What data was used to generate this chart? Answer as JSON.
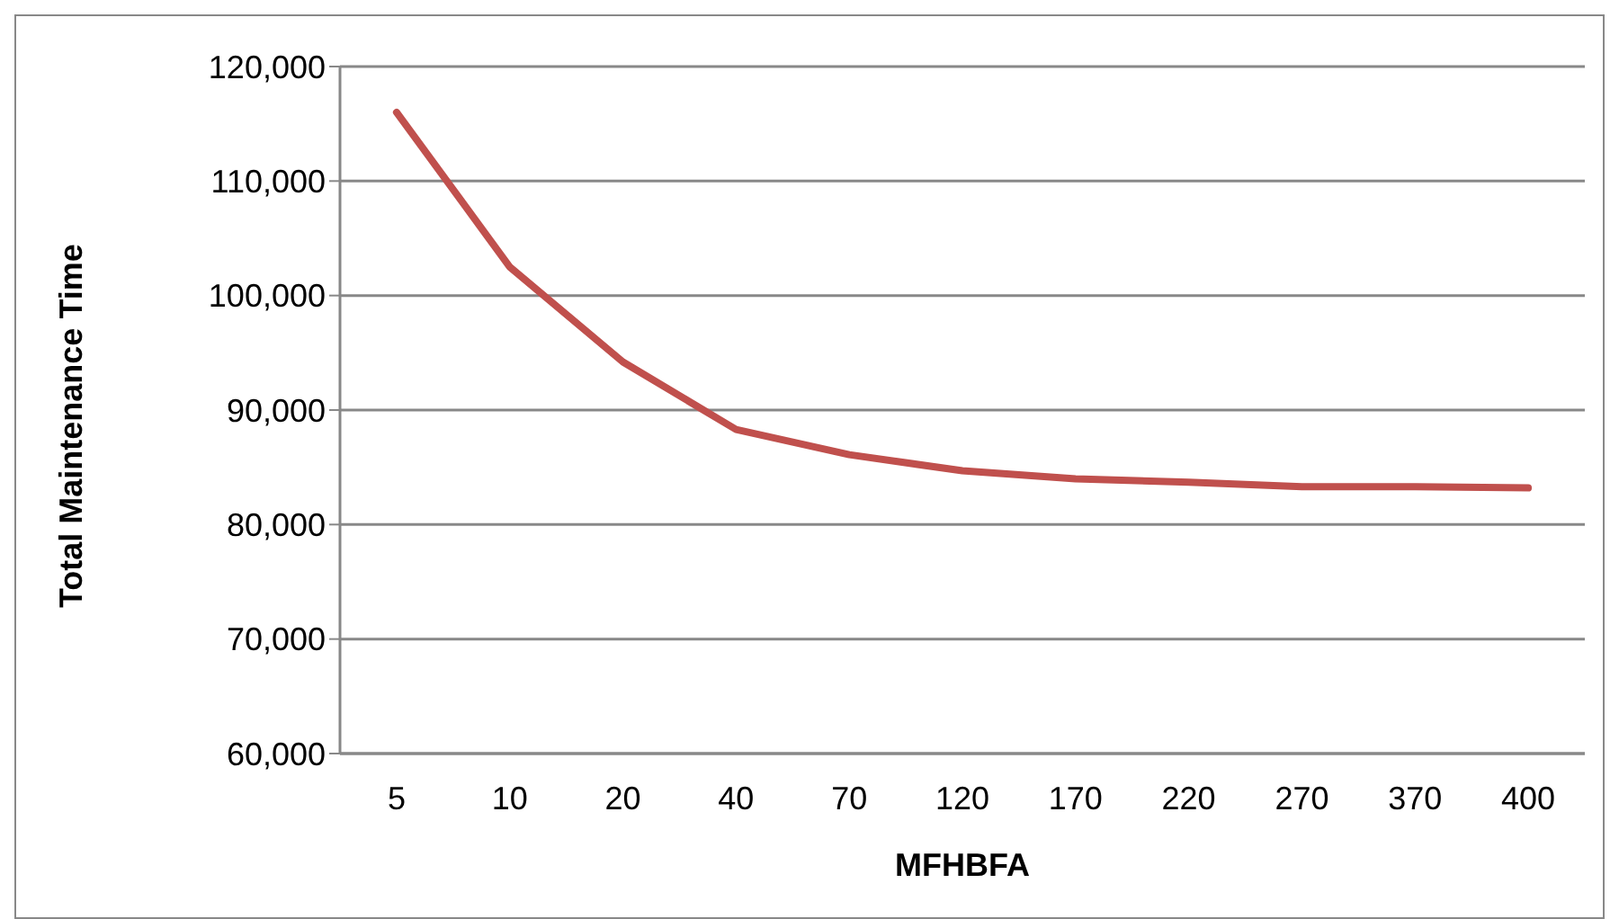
{
  "chart_data": {
    "type": "line",
    "xlabel": "MFHBFA",
    "ylabel": "Total Maintenance Time",
    "categories": [
      "5",
      "10",
      "20",
      "40",
      "70",
      "120",
      "170",
      "220",
      "270",
      "370",
      "400"
    ],
    "series": [
      {
        "color": "#c0504d",
        "values": [
          116000,
          102500,
          94200,
          88300,
          86100,
          84700,
          84000,
          83700,
          83300,
          83300,
          83200
        ]
      }
    ],
    "ylim": [
      60000,
      120000
    ],
    "yticks": [
      {
        "value": 60000,
        "label": "60,000"
      },
      {
        "value": 70000,
        "label": "70,000"
      },
      {
        "value": 80000,
        "label": "80,000"
      },
      {
        "value": 90000,
        "label": "90,000"
      },
      {
        "value": 100000,
        "label": "100,000"
      },
      {
        "value": 110000,
        "label": "110,000"
      },
      {
        "value": 120000,
        "label": "120,000"
      }
    ],
    "grid": "y",
    "legend": false,
    "marker": "none",
    "line_style": "solid"
  }
}
